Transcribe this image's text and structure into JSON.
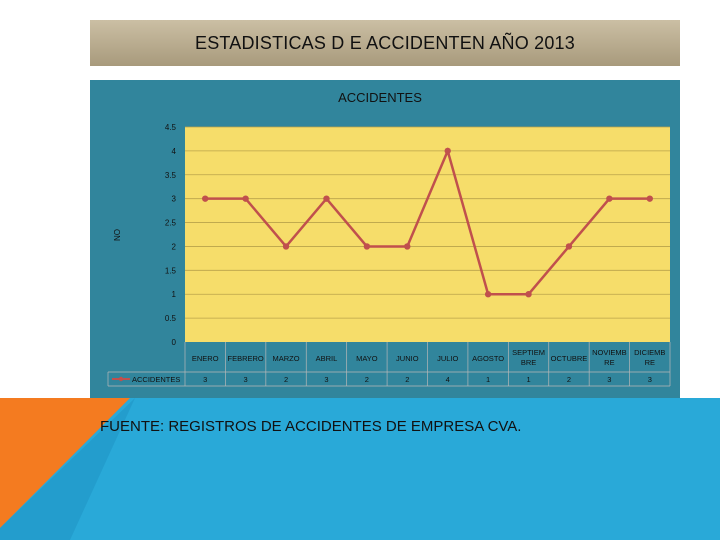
{
  "slide": {
    "title": "ESTADISTICAS D E ACCIDENTEN AÑO 2013",
    "source_note": "FUENTE: REGISTROS DE ACCIDENTES DE  EMPRESA  CVA."
  },
  "colors": {
    "title_band": "#bcae92",
    "chart_background": "#31859c",
    "plot_background": "#f6dd6a",
    "series_line": "#c0504d",
    "deco_orange": "#f47b20",
    "deco_blue": "#29a9d8"
  },
  "chart_data": {
    "type": "line",
    "title": "ACCIDENTES",
    "ylabel": "NO",
    "xlabel": "",
    "ylim": [
      0,
      4.5
    ],
    "y_ticks": [
      "0",
      "0.5",
      "1",
      "1.5",
      "2",
      "2.5",
      "3",
      "3.5",
      "4",
      "4.5"
    ],
    "grid": true,
    "legend": "bottom-left (data table)",
    "categories": [
      "ENERO",
      "FEBRERO",
      "MARZO",
      "ABRIL",
      "MAYO",
      "JUNIO",
      "JULIO",
      "AGOSTO",
      "SEPTIEMBRE",
      "OCTUBRE",
      "NOVIEMBRE",
      "DICIEMBRE"
    ],
    "category_lines": [
      [
        "ENERO"
      ],
      [
        "FEBRERO"
      ],
      [
        "MARZO"
      ],
      [
        "ABRIL"
      ],
      [
        "MAYO"
      ],
      [
        "JUNIO"
      ],
      [
        "JULIO"
      ],
      [
        "AGOSTO"
      ],
      [
        "SEPTIEM",
        "BRE"
      ],
      [
        "OCTUBRE"
      ],
      [
        "NOVIEMB",
        "RE"
      ],
      [
        "DICIEMB",
        "RE"
      ]
    ],
    "series": [
      {
        "name": "ACCIDENTES",
        "values": [
          3,
          3,
          2,
          3,
          2,
          2,
          4,
          1,
          1,
          2,
          3,
          3
        ]
      }
    ]
  }
}
